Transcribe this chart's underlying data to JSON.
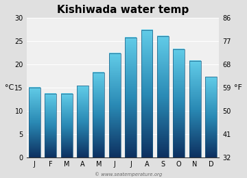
{
  "title": "Kishiwada water temp",
  "months": [
    "J",
    "F",
    "M",
    "A",
    "M",
    "J",
    "J",
    "A",
    "S",
    "O",
    "N",
    "D"
  ],
  "values_c": [
    15.0,
    13.7,
    13.7,
    15.4,
    18.3,
    22.3,
    25.8,
    27.4,
    26.0,
    23.2,
    20.7,
    17.3
  ],
  "ylim_c": [
    0,
    30
  ],
  "yticks_c": [
    0,
    5,
    10,
    15,
    20,
    25,
    30
  ],
  "yticks_f": [
    32,
    41,
    50,
    59,
    68,
    77,
    86
  ],
  "ylabel_left": "°C",
  "ylabel_right": "°F",
  "bar_color_top": "#62cce8",
  "bar_color_mid": "#2a8ab5",
  "bar_color_bottom": "#0d3060",
  "bar_edge_color": "#1a5a80",
  "bg_color": "#e0e0e0",
  "plot_bg_color": "#f0f0f0",
  "grid_color": "#ffffff",
  "watermark": "© www.seatemperature.org",
  "title_fontsize": 11,
  "tick_fontsize": 7,
  "label_fontsize": 8,
  "bar_width": 0.72
}
